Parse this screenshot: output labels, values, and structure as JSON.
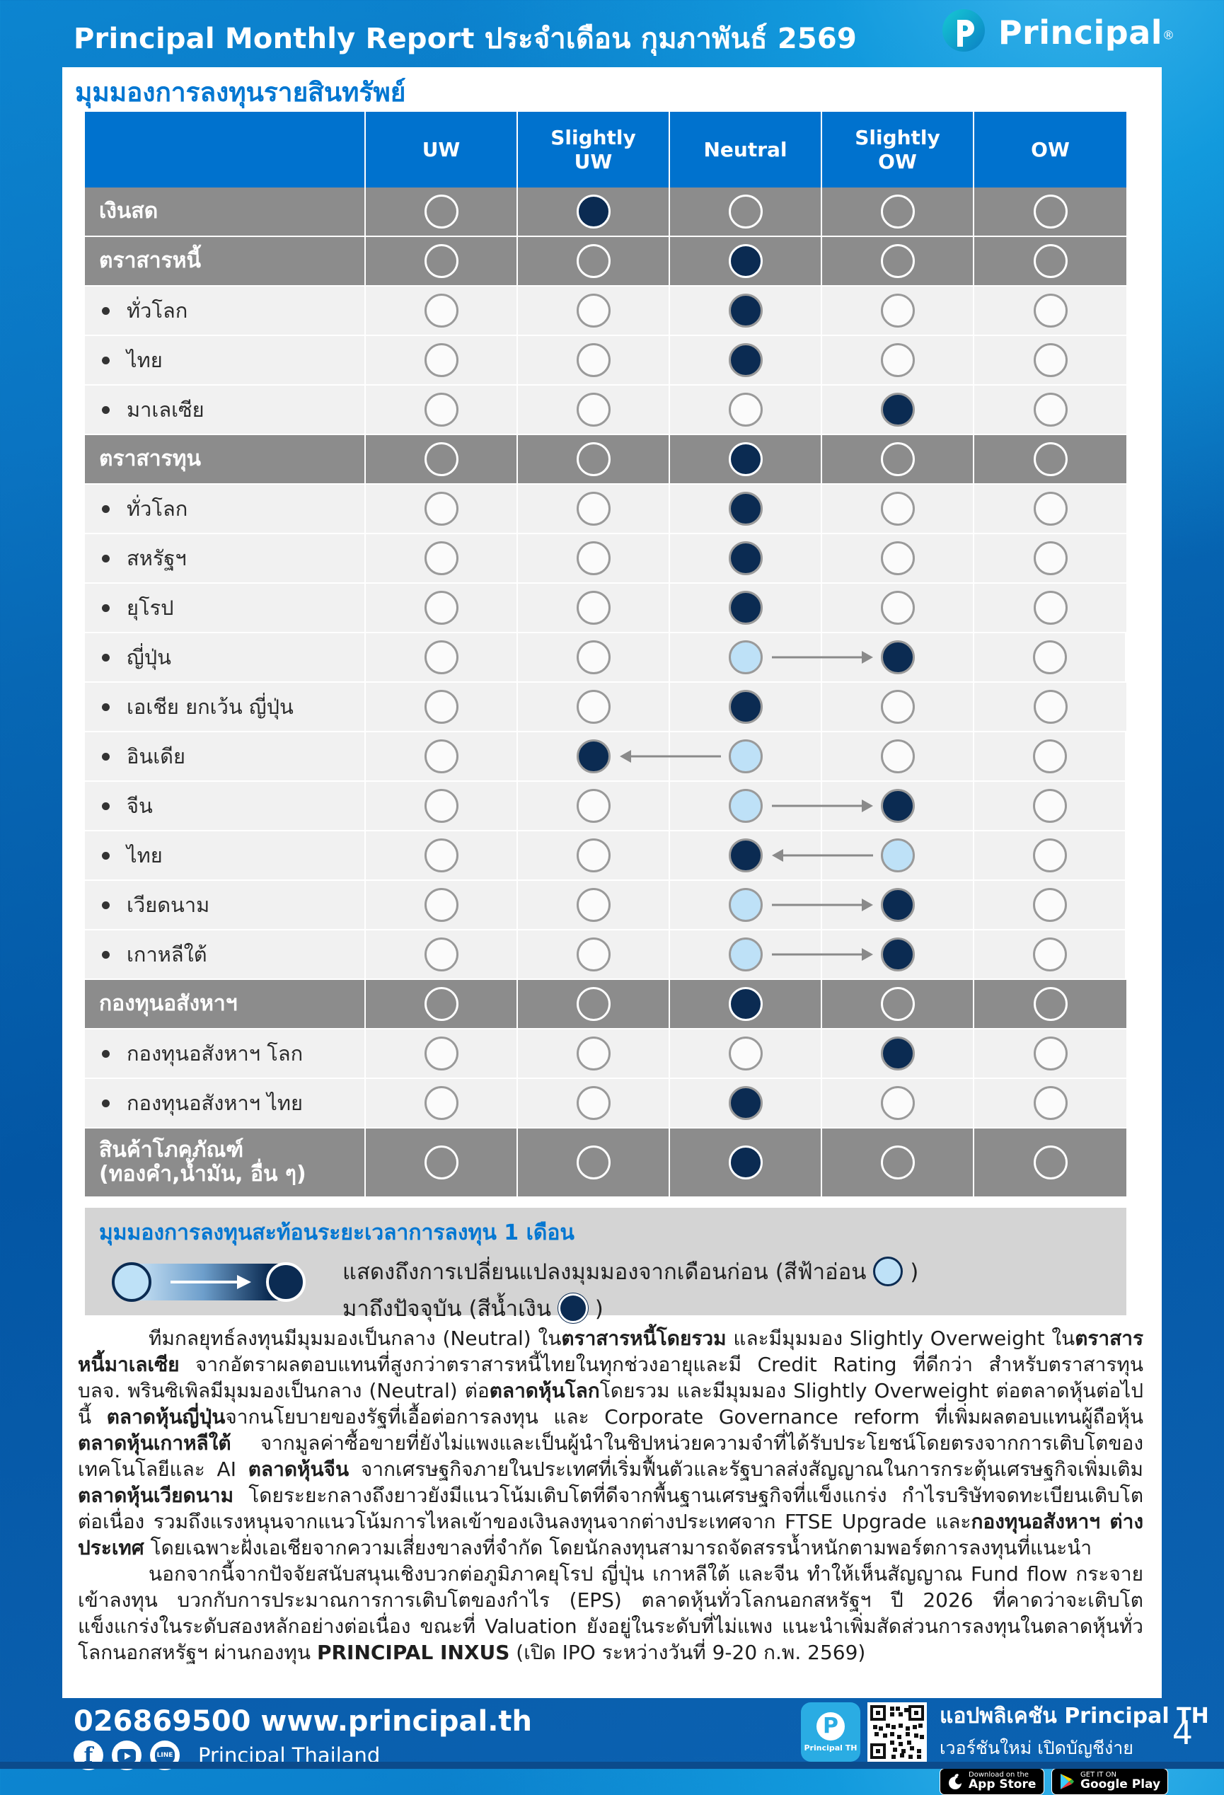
{
  "colors": {
    "accent_blue": "#0072CE",
    "navy": "#0B2B52",
    "light_blue": "#BEE1F7",
    "row_gray": "#8C8C8C",
    "row_light": "#F1F1F1",
    "legend_gray": "#D4D4D4"
  },
  "header": {
    "title": "Principal Monthly Report ประจำเดือน กุมภาพันธ์ 2569",
    "brand": "Principal",
    "registered": "®",
    "logo_mark": "P"
  },
  "card": {
    "section_title": "มุมมองการลงทุนรายสินทรัพย์"
  },
  "table": {
    "columns": [
      "UW",
      "Slightly\nUW",
      "Neutral",
      "Slightly\nOW",
      "OW"
    ],
    "rows": [
      {
        "label": "เงินสด",
        "type": "category",
        "selected": 1
      },
      {
        "label": "ตราสารหนี้",
        "type": "category",
        "selected": 2
      },
      {
        "label": "ทั่วโลก",
        "type": "sub",
        "selected": 2
      },
      {
        "label": "ไทย",
        "type": "sub",
        "selected": 2
      },
      {
        "label": "มาเลเซีย",
        "type": "sub",
        "selected": 3
      },
      {
        "label": "ตราสารทุน",
        "type": "category",
        "selected": 2
      },
      {
        "label": "ทั่วโลก",
        "type": "sub",
        "selected": 2
      },
      {
        "label": "สหรัฐฯ",
        "type": "sub",
        "selected": 2
      },
      {
        "label": "ยุโรป",
        "type": "sub",
        "selected": 2
      },
      {
        "label": "ญี่ปุ่น",
        "type": "sub",
        "selected": 3,
        "previous": 2
      },
      {
        "label": "เอเชีย ยกเว้น ญี่ปุ่น",
        "type": "sub",
        "selected": 2
      },
      {
        "label": "อินเดีย",
        "type": "sub",
        "selected": 1,
        "previous": 2
      },
      {
        "label": "จีน",
        "type": "sub",
        "selected": 3,
        "previous": 2
      },
      {
        "label": "ไทย",
        "type": "sub",
        "selected": 2,
        "previous": 3
      },
      {
        "label": "เวียดนาม",
        "type": "sub",
        "selected": 3,
        "previous": 2
      },
      {
        "label": "เกาหลีใต้",
        "type": "sub",
        "selected": 3,
        "previous": 2
      },
      {
        "label": "กองทุนอสังหาฯ",
        "type": "category",
        "selected": 2
      },
      {
        "label": "กองทุนอสังหาฯ โลก",
        "type": "sub",
        "selected": 3
      },
      {
        "label": "กองทุนอสังหาฯ ไทย",
        "type": "sub",
        "selected": 2
      },
      {
        "label": "สินค้าโภคภัณฑ์",
        "label2": "(ทองคำ,น้ำมัน, อื่น ๆ)",
        "type": "category",
        "selected": 2
      }
    ]
  },
  "legend": {
    "title": "มุมมองการลงทุนสะท้อนระยะเวลาการลงทุน 1 เดือน",
    "line1": [
      {
        "text": "แสดงถึงการเปลี่ยนแปลงมุมมองจากเดือนก่อน (สีฟ้าอ่อน "
      },
      {
        "circle": "light"
      },
      {
        "text": " )"
      }
    ],
    "line2": [
      {
        "text": "มาถึงปัจจุบัน (สีน้ำเงิน "
      },
      {
        "circle": "dark"
      },
      {
        "text": " )"
      }
    ]
  },
  "paragraphs": [
    [
      {
        "text": "ทีมกลยุทธ์ลงทุนมีมุมมองเป็นกลาง (Neutral) ใน"
      },
      {
        "text": "ตราสารหนี้โดยรวม",
        "bold": true
      },
      {
        "text": " และมีมุมมอง Slightly Overweight ใน"
      },
      {
        "text": "ตราสารหนี้มาเลเซีย",
        "bold": true
      },
      {
        "text": " จากอัตราผลตอบแทนที่สูงกว่าตราสารหนี้ไทยในทุกช่วงอายุและมี Credit Rating ที่ดีกว่า สำหรับตราสารทุน บลจ. พรินซิเพิลมีมุมมองเป็นกลาง (Neutral) ต่อ"
      },
      {
        "text": "ตลาดหุ้นโลก",
        "bold": true
      },
      {
        "text": "โดยรวม และมีมุมมอง Slightly Overweight ต่อตลาดหุ้นต่อไปนี้ "
      },
      {
        "text": "ตลาดหุ้นญี่ปุ่น",
        "bold": true
      },
      {
        "text": "จากนโยบายของรัฐที่เอื้อต่อการลงทุน และ Corporate Governance reform ที่เพิ่มผลตอบแทนผู้ถือหุ้น "
      },
      {
        "text": "ตลาดหุ้นเกาหลีใต้",
        "bold": true
      },
      {
        "text": " จากมูลค่าซื้อขายที่ยังไม่แพงและเป็นผู้นำในชิปหน่วยความจำที่ได้รับประโยชน์โดยตรงจากการเติบโตของเทคโนโลยีและ AI "
      },
      {
        "text": "ตลาดหุ้นจีน",
        "bold": true
      },
      {
        "text": " จากเศรษฐกิจภายในประเทศที่เริ่มฟื้นตัวและรัฐบาลส่งสัญญาณในการกระตุ้นเศรษฐกิจเพิ่มเติม "
      },
      {
        "text": "ตลาดหุ้นเวียดนาม",
        "bold": true
      },
      {
        "text": " โดยระยะกลางถึงยาวยังมีแนวโน้มเติบโตที่ดีจากพื้นฐานเศรษฐกิจที่แข็งแกร่ง กำไรบริษัทจดทะเบียนเติบโตต่อเนื่อง รวมถึงแรงหนุนจากแนวโน้มการไหลเข้าของเงินลงทุนจากต่างประเทศจาก FTSE Upgrade และ"
      },
      {
        "text": "กองทุนอสังหาฯ ต่างประเทศ",
        "bold": true
      },
      {
        "text": " โดยเฉพาะฝั่งเอเชียจากความเสี่ยงขาลงที่จำกัด โดยนักลงทุนสามารถจัดสรรน้ำหนักตามพอร์ตการลงทุนที่แนะนำ"
      }
    ],
    [
      {
        "text": "นอกจากนี้จากปัจจัยสนับสนุนเชิงบวกต่อภูมิภาคยุโรป ญี่ปุ่น เกาหลีใต้ และจีน ทำให้เห็นสัญญาณ Fund flow กระจายเข้าลงทุน บวกกับการประมาณการการเติบโตของกำไร (EPS) ตลาดหุ้นทั่วโลกนอกสหรัฐฯ ปี 2026 ที่คาดว่าจะเติบโตแข็งแกร่งในระดับสองหลักอย่างต่อเนื่อง ขณะที่ Valuation ยังอยู่ในระดับที่ไม่แพง แนะนำเพิ่มสัดส่วนการลงทุนในตลาดหุ้นทั่วโลกนอกสหรัฐฯ ผ่านกองทุน "
      },
      {
        "text": "PRINCIPAL INXUS",
        "bold": true
      },
      {
        "text": " (เปิด IPO ระหว่างวันที่ 9-20 ก.พ. 2569)"
      }
    ]
  ],
  "footer": {
    "phone_web": "026869500 www.principal.th",
    "social_label": "Principal Thailand",
    "app_title": "แอปพลิเคชัน Principal TH",
    "app_subtitle": "เวอร์ชันใหม่ เปิดบัญชีง่าย",
    "app_icon_caption": "Principal TH",
    "appstore_top": "Download on the",
    "appstore_bottom": "App Store",
    "play_top": "GET IT ON",
    "play_bottom": "Google Play",
    "page_number": "4"
  }
}
